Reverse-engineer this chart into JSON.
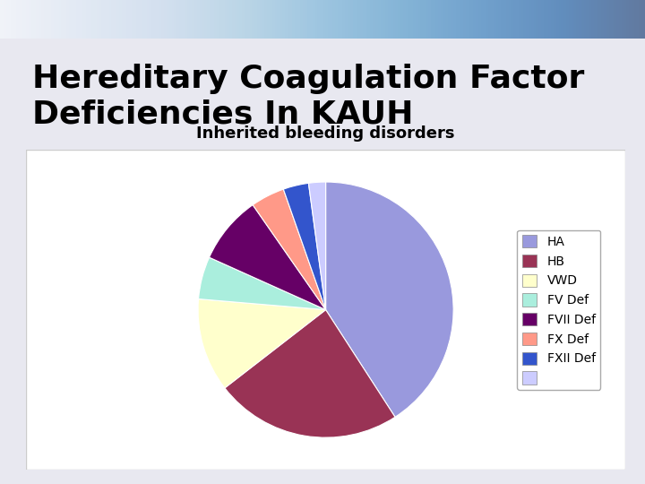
{
  "title": "Hereditary Coagulation Factor\nDeficiencies In KAUH",
  "pie_title": "Inherited bleeding disorders",
  "labels": [
    "HA",
    "HB",
    "VWD",
    "FV Def",
    "FVII Def",
    "FX Def",
    "FXII Def",
    ""
  ],
  "values": [
    38,
    22,
    11,
    5,
    8,
    4,
    3,
    2
  ],
  "colors": [
    "#9999dd",
    "#993355",
    "#ffffcc",
    "#aaeedd",
    "#660066",
    "#ff9988",
    "#3355cc",
    "#ccccff"
  ],
  "background_color": "#ffffff",
  "slide_bg": "#e8e8f0",
  "title_color": "#000000",
  "title_fontsize": 26,
  "pie_title_fontsize": 13
}
